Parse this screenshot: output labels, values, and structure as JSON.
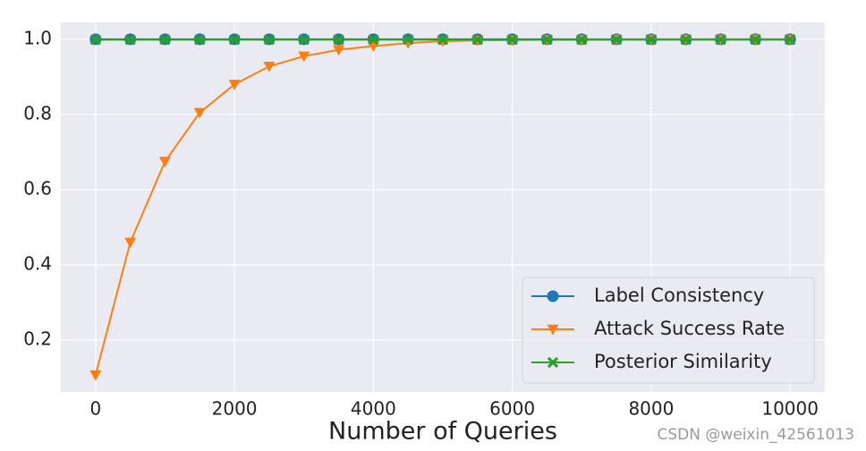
{
  "chart_data": {
    "type": "line",
    "x_label": "Number of Queries",
    "x": [
      0,
      500,
      1000,
      1500,
      2000,
      2500,
      3000,
      3500,
      4000,
      4500,
      5000,
      5500,
      6000,
      6500,
      7000,
      7500,
      8000,
      8500,
      9000,
      9500,
      10000
    ],
    "series": [
      {
        "name": "Label Consistency",
        "color": "#1f77b4",
        "marker": "circle",
        "values": [
          1,
          1,
          1,
          1,
          1,
          1,
          1,
          1,
          1,
          1,
          1,
          1,
          1,
          1,
          1,
          1,
          1,
          1,
          1,
          1,
          1
        ]
      },
      {
        "name": "Attack Success Rate",
        "color": "#ff7f0e",
        "marker": "triangle-down",
        "values": [
          0.107,
          0.46,
          0.675,
          0.805,
          0.88,
          0.928,
          0.955,
          0.972,
          0.982,
          0.99,
          0.995,
          0.997,
          0.998,
          0.999,
          0.999,
          1,
          1,
          1,
          1,
          1,
          1
        ]
      },
      {
        "name": "Posterior Similarity",
        "color": "#2ca02c",
        "marker": "x",
        "values": [
          0.999,
          0.999,
          0.999,
          0.999,
          0.999,
          0.999,
          0.999,
          0.999,
          0.999,
          0.999,
          0.999,
          0.999,
          0.999,
          0.999,
          0.999,
          0.999,
          0.999,
          0.999,
          0.999,
          0.999,
          0.999
        ]
      }
    ],
    "xlim": [
      -500,
      10500
    ],
    "xticks": [
      0,
      2000,
      4000,
      6000,
      8000,
      10000
    ],
    "ylim": [
      0.062,
      1.045
    ],
    "yticks": [
      0.2,
      0.4,
      0.6,
      0.8,
      {
        "value": 1,
        "label": "1.0"
      }
    ],
    "grid": true,
    "legend": "lower right",
    "watermark": "CSDN @weixin_42561013"
  }
}
